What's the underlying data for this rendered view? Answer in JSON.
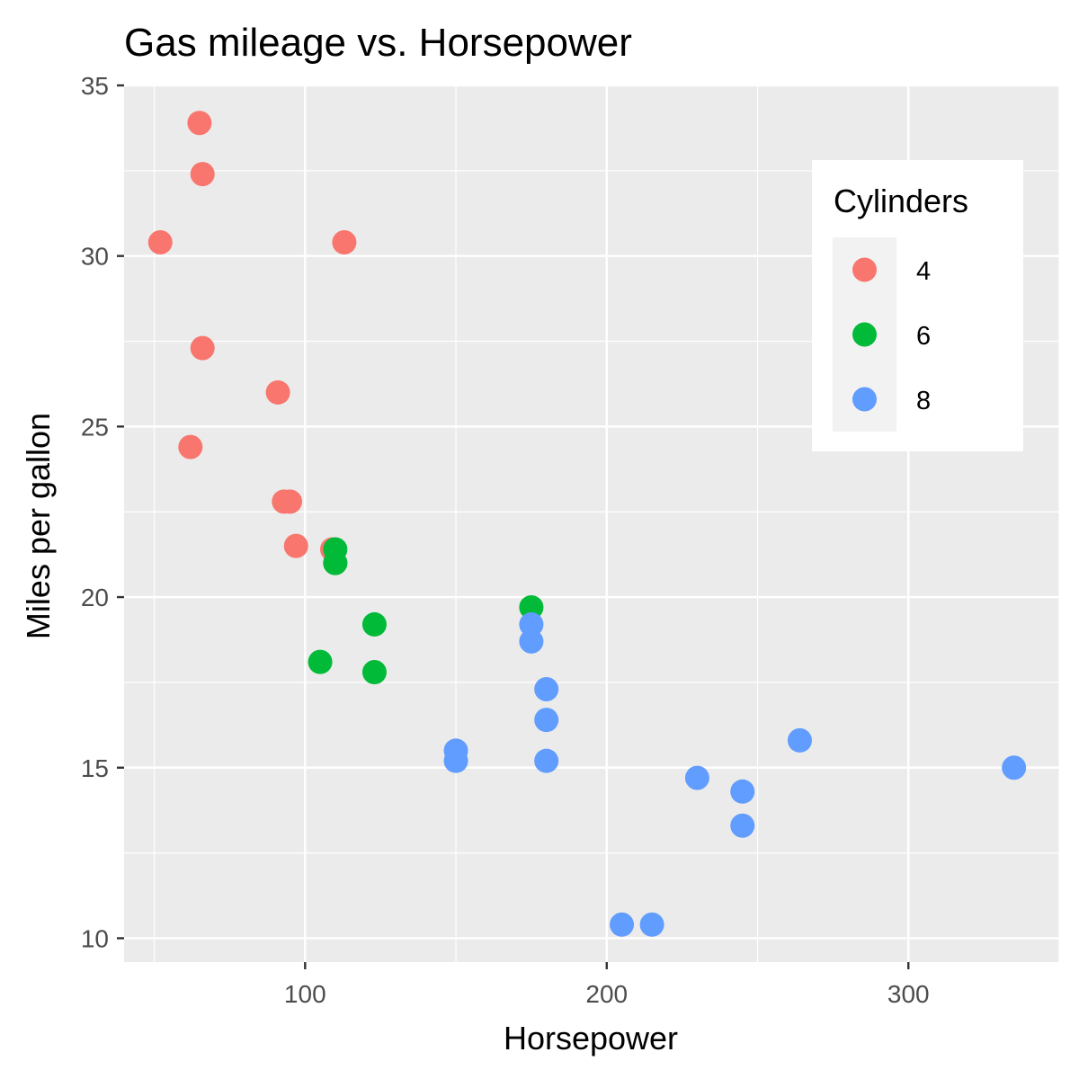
{
  "chart_data": {
    "type": "scatter",
    "title": "Gas mileage vs. Horsepower",
    "xlabel": "Horsepower",
    "ylabel": "Miles per gallon",
    "xlim": [
      40,
      350
    ],
    "ylim": [
      9.3,
      35
    ],
    "x_ticks": [
      100,
      200,
      300
    ],
    "y_ticks": [
      10,
      15,
      20,
      25,
      30,
      35
    ],
    "grid": true,
    "legend": {
      "title": "Cylinders",
      "placement": "top-right"
    },
    "series": [
      {
        "name": "4",
        "color": "#F8766D",
        "points": [
          [
            93,
            22.8
          ],
          [
            62,
            24.4
          ],
          [
            95,
            22.8
          ],
          [
            66,
            32.4
          ],
          [
            52,
            30.4
          ],
          [
            65,
            33.9
          ],
          [
            97,
            21.5
          ],
          [
            66,
            27.3
          ],
          [
            91,
            26.0
          ],
          [
            113,
            30.4
          ],
          [
            109,
            21.4
          ]
        ]
      },
      {
        "name": "6",
        "color": "#00BA38",
        "points": [
          [
            110,
            21.0
          ],
          [
            110,
            21.0
          ],
          [
            110,
            21.4
          ],
          [
            105,
            18.1
          ],
          [
            123,
            19.2
          ],
          [
            123,
            17.8
          ],
          [
            175,
            19.7
          ]
        ]
      },
      {
        "name": "8",
        "color": "#619CFF",
        "points": [
          [
            175,
            18.7
          ],
          [
            245,
            14.3
          ],
          [
            180,
            16.4
          ],
          [
            180,
            17.3
          ],
          [
            180,
            15.2
          ],
          [
            205,
            10.4
          ],
          [
            215,
            10.4
          ],
          [
            230,
            14.7
          ],
          [
            150,
            15.5
          ],
          [
            150,
            15.2
          ],
          [
            245,
            13.3
          ],
          [
            175,
            19.2
          ],
          [
            264,
            15.8
          ],
          [
            335,
            15.0
          ]
        ]
      }
    ]
  }
}
